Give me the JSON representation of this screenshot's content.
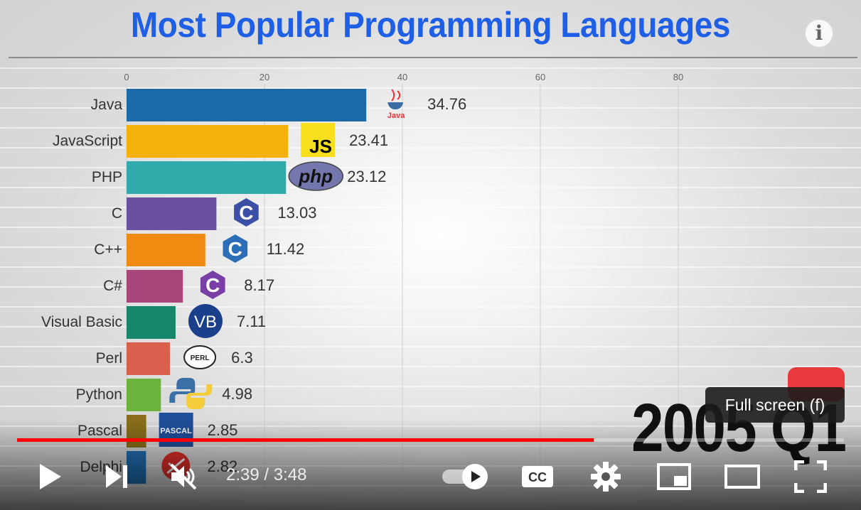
{
  "video": {
    "title": "Most Popular Programming Languages",
    "info_symbol": "i",
    "year_label": "2005 Q1"
  },
  "chart_data": {
    "type": "bar",
    "orientation": "horizontal",
    "title": "Most Popular Programming Languages",
    "xlim": [
      0,
      100
    ],
    "ticks": [
      0,
      20,
      40,
      60,
      80
    ],
    "categories": [
      "Java",
      "JavaScript",
      "PHP",
      "C",
      "C++",
      "C#",
      "Visual Basic",
      "Perl",
      "Python",
      "Pascal",
      "Delphi"
    ],
    "values": [
      34.76,
      23.41,
      23.12,
      13.03,
      11.42,
      8.17,
      7.11,
      6.3,
      4.98,
      2.85,
      2.82
    ],
    "value_labels": [
      "34.76",
      "23.41",
      "23.12",
      "13.03",
      "11.42",
      "8.17",
      "7.11",
      "6.3",
      "4.98",
      "2.85",
      "2.82"
    ],
    "colors": [
      "#1a6aa8",
      "#f5b10a",
      "#30aaaa",
      "#6b4fa3",
      "#f08a10",
      "#a8457a",
      "#17876b",
      "#d8604c",
      "#6bb33b",
      "#8a6e1b",
      "#2070b5"
    ],
    "icons": [
      "java-logo-icon",
      "js-logo-icon",
      "php-logo-icon",
      "c-logo-icon",
      "cpp-logo-icon",
      "csharp-logo-icon",
      "vb-logo-icon",
      "perl-logo-icon",
      "python-logo-icon",
      "pascal-logo-icon",
      "delphi-logo-icon"
    ],
    "icon_text": [
      "Java",
      "JS",
      "php",
      "C",
      "C",
      "C",
      "VB",
      "PERL",
      "",
      "PASCAL",
      ""
    ],
    "grid": true
  },
  "player": {
    "tooltip": "Full screen (f)",
    "current_time": "2:39",
    "duration": "3:48",
    "time_separator": " / ",
    "progress": 0.697,
    "cc_label": "CC",
    "accent": "#ff0000"
  }
}
